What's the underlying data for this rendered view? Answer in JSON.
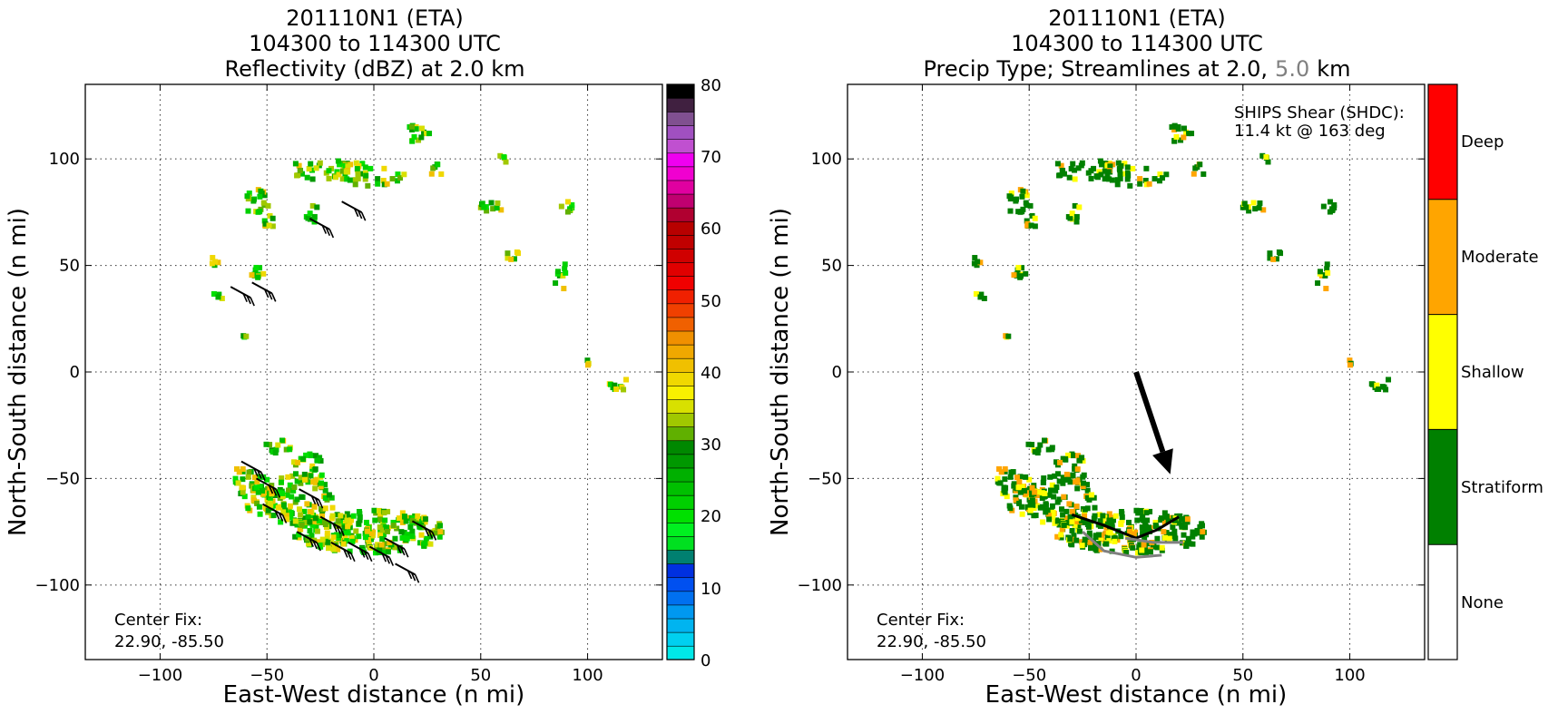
{
  "left": {
    "title_lines": [
      "201110N1 (ETA)",
      "104300 to 114300 UTC",
      "Reflectivity (dBZ) at 2.0 km"
    ],
    "xlabel": "East-West distance (n mi)",
    "ylabel": "North-South distance (n mi)",
    "center_fix": [
      "Center Fix:",
      "22.90, -85.50"
    ],
    "colorbar_ticks": [
      "0",
      "10",
      "20",
      "30",
      "40",
      "50",
      "60",
      "70",
      "80"
    ]
  },
  "right": {
    "title_lines": [
      "201110N1 (ETA)",
      "104300 to 114300 UTC"
    ],
    "title_line3_a": "Precip Type; Streamlines at 2.0,",
    "title_line3_b": "5.0",
    "title_line3_c": "km",
    "xlabel": "East-West distance (n mi)",
    "ylabel": "North-South distance (n mi)",
    "center_fix": [
      "Center Fix:",
      "22.90, -85.50"
    ],
    "shear_note": [
      "SHIPS Shear (SHDC):",
      "11.4 kt @ 163 deg"
    ],
    "categories": [
      "Deep",
      "Moderate",
      "Shallow",
      "Stratiform",
      "None"
    ]
  },
  "chart_data": [
    {
      "type": "heatmap",
      "title": "201110N1 (ETA) 104300 to 114300 UTC Reflectivity (dBZ) at 2.0 km",
      "xlabel": "East-West distance (n mi)",
      "ylabel": "North-South distance (n mi)",
      "xlim": [
        -135,
        135
      ],
      "ylim": [
        -135,
        135
      ],
      "xticks": [
        -100,
        -50,
        0,
        50,
        100
      ],
      "yticks": [
        -100,
        -50,
        0,
        50,
        100
      ],
      "grid": true,
      "colorbar": {
        "label_values": [
          0,
          10,
          20,
          30,
          40,
          50,
          60,
          70,
          80
        ],
        "range": [
          0,
          80
        ]
      },
      "colorbar_colors": [
        "#00e8e8",
        "#00d0f0",
        "#00b4f0",
        "#0098f0",
        "#0070f0",
        "#0050f0",
        "#0030e0",
        "#008070",
        "#00e020",
        "#00f020",
        "#00e000",
        "#00d000",
        "#00c000",
        "#00b000",
        "#009800",
        "#008800",
        "#60b000",
        "#a0c800",
        "#d8e000",
        "#f8f000",
        "#f0d800",
        "#f0c000",
        "#f0a800",
        "#f09000",
        "#f06000",
        "#f04000",
        "#f02000",
        "#f00000",
        "#e00000",
        "#d00000",
        "#c00000",
        "#b80000",
        "#b00030",
        "#c00070",
        "#e000a0",
        "#f000d0",
        "#f000f0",
        "#c050d0",
        "#a050c0",
        "#805090",
        "#402040",
        "#000000"
      ],
      "center_fix": [
        22.9,
        -85.5
      ],
      "wind_barbs": [
        {
          "x": -30,
          "y": 72
        },
        {
          "x": -15,
          "y": 80
        },
        {
          "x": -67,
          "y": 40
        },
        {
          "x": -57,
          "y": 42
        },
        {
          "x": -62,
          "y": -42
        },
        {
          "x": -55,
          "y": -50
        },
        {
          "x": -52,
          "y": -62
        },
        {
          "x": -35,
          "y": -55
        },
        {
          "x": -25,
          "y": -68
        },
        {
          "x": -36,
          "y": -75
        },
        {
          "x": -20,
          "y": -80
        },
        {
          "x": -12,
          "y": -80
        },
        {
          "x": -2,
          "y": -82
        },
        {
          "x": 5,
          "y": -78
        },
        {
          "x": 18,
          "y": -70
        },
        {
          "x": 10,
          "y": -90
        }
      ]
    },
    {
      "type": "heatmap",
      "title": "201110N1 (ETA) 104300 to 114300 UTC Precip Type; Streamlines at 2.0, 5.0 km",
      "xlabel": "East-West distance (n mi)",
      "ylabel": "North-South distance (n mi)",
      "xlim": [
        -135,
        135
      ],
      "ylim": [
        -135,
        135
      ],
      "xticks": [
        -100,
        -50,
        0,
        50,
        100
      ],
      "yticks": [
        -100,
        -50,
        0,
        50,
        100
      ],
      "grid": true,
      "legend_categories": [
        "None",
        "Stratiform",
        "Shallow",
        "Moderate",
        "Deep"
      ],
      "category_colors": {
        "None": "#ffffff",
        "Stratiform": "#008000",
        "Shallow": "#ffff00",
        "Moderate": "#ffa500",
        "Deep": "#ff0000"
      },
      "shear_vector": {
        "speed_kt": 11.4,
        "direction_deg": 163,
        "from": [
          0,
          0
        ],
        "to": [
          16,
          -48
        ]
      },
      "streamlines": [
        {
          "level_km": 2.0,
          "color": "#000000",
          "points": [
            [
              -30,
              -67
            ],
            [
              -15,
              -72
            ],
            [
              0,
              -78
            ],
            [
              10,
              -74
            ],
            [
              20,
              -68
            ]
          ]
        },
        {
          "level_km": 5.0,
          "color": "#808080",
          "points": [
            [
              -25,
              -75
            ],
            [
              -15,
              -84
            ],
            [
              0,
              -87
            ],
            [
              12,
              -86
            ]
          ]
        },
        {
          "level_km": 5.0,
          "color": "#808080",
          "points": [
            [
              -5,
              -78
            ],
            [
              8,
              -80
            ],
            [
              22,
              -80
            ]
          ]
        }
      ],
      "center_fix": [
        22.9,
        -85.5
      ]
    }
  ]
}
